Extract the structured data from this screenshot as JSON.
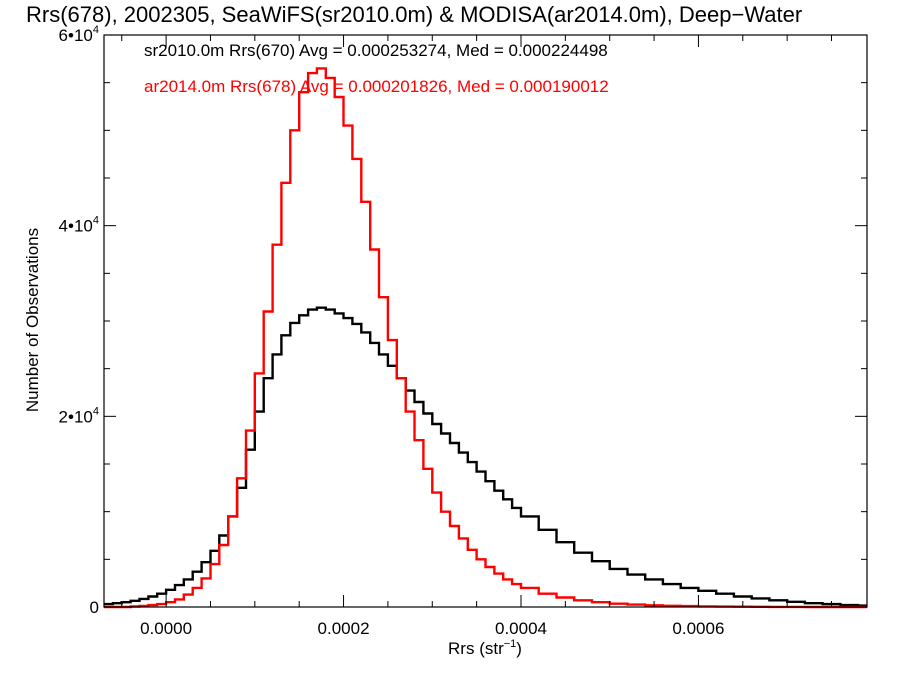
{
  "chart_data": {
    "type": "line",
    "title": "Rrs(678), 2002305, SeaWiFS(sr2010.0m) & MODISA(ar2014.0m), Deep−Water",
    "xlabel": "Rrs (str",
    "xlabel_sup": "−1",
    "xlabel_suffix": ")",
    "ylabel": "Number of Observations",
    "xlim": [
      -7e-05,
      0.00079
    ],
    "ylim": [
      0,
      60000
    ],
    "grid": false,
    "x_ticks": [
      {
        "value": 0.0,
        "label": "0.0000"
      },
      {
        "value": 0.0002,
        "label": "0.0002"
      },
      {
        "value": 0.0004,
        "label": "0.0004"
      },
      {
        "value": 0.0006,
        "label": "0.0006"
      }
    ],
    "y_ticks": [
      {
        "value": 0,
        "label": "0",
        "sup": ""
      },
      {
        "value": 20000,
        "label": "2•10",
        "sup": "4"
      },
      {
        "value": 40000,
        "label": "4•10",
        "sup": "4"
      },
      {
        "value": 60000,
        "label": "6•10",
        "sup": "4"
      }
    ],
    "legend": [
      {
        "text": "sr2010.0m Rrs(670) Avg = 0.000253274, Med = 0.000224498",
        "color": "#000000"
      },
      {
        "text": "ar2014.0m Rrs(678) Avg = 0.000201826, Med = 0.000190012",
        "color": "#ff0000"
      }
    ],
    "legend_placement": "top-left",
    "series": [
      {
        "color": "#000000",
        "x": [
          -7e-05,
          -6e-05,
          -5e-05,
          -4e-05,
          -3e-05,
          -2e-05,
          -1e-05,
          0.0,
          1e-05,
          2e-05,
          3e-05,
          4e-05,
          5e-05,
          6e-05,
          7e-05,
          8e-05,
          9e-05,
          0.0001,
          0.00011,
          0.00012,
          0.00013,
          0.00014,
          0.00015,
          0.00016,
          0.00017,
          0.00018,
          0.00019,
          0.0002,
          0.00021,
          0.00022,
          0.00023,
          0.00024,
          0.00025,
          0.00026,
          0.00027,
          0.00028,
          0.00029,
          0.0003,
          0.00031,
          0.00032,
          0.00033,
          0.00034,
          0.00035,
          0.00036,
          0.00037,
          0.00038,
          0.00039,
          0.0004,
          0.00042,
          0.00044,
          0.00046,
          0.00048,
          0.0005,
          0.00052,
          0.00054,
          0.00056,
          0.00058,
          0.0006,
          0.00062,
          0.00064,
          0.00066,
          0.00068,
          0.0007,
          0.00072,
          0.00074,
          0.00076,
          0.00078
        ],
        "y": [
          300,
          400,
          500,
          650,
          850,
          1100,
          1400,
          1800,
          2300,
          2900,
          3700,
          4700,
          5900,
          7500,
          9500,
          12500,
          16500,
          20500,
          24000,
          26500,
          28500,
          29800,
          30600,
          31200,
          31400,
          31200,
          30800,
          30300,
          29700,
          28800,
          27700,
          26500,
          25300,
          24000,
          22700,
          21500,
          20300,
          19200,
          18200,
          17200,
          16200,
          15200,
          14200,
          13200,
          12200,
          11300,
          10400,
          9500,
          8100,
          6800,
          5700,
          4800,
          4000,
          3400,
          2900,
          2400,
          2000,
          1700,
          1400,
          1100,
          900,
          700,
          550,
          400,
          300,
          200,
          150
        ]
      },
      {
        "color": "#ff0000",
        "x": [
          -7e-05,
          -6e-05,
          -5e-05,
          -4e-05,
          -3e-05,
          -2e-05,
          -1e-05,
          0.0,
          1e-05,
          2e-05,
          3e-05,
          4e-05,
          5e-05,
          6e-05,
          7e-05,
          8e-05,
          9e-05,
          0.0001,
          0.00011,
          0.00012,
          0.00013,
          0.00014,
          0.00015,
          0.00016,
          0.00017,
          0.00018,
          0.00019,
          0.0002,
          0.00021,
          0.00022,
          0.00023,
          0.00024,
          0.00025,
          0.00026,
          0.00027,
          0.00028,
          0.00029,
          0.0003,
          0.00031,
          0.00032,
          0.00033,
          0.00034,
          0.00035,
          0.00036,
          0.00037,
          0.00038,
          0.00039,
          0.0004,
          0.00042,
          0.00044,
          0.00046,
          0.00048,
          0.0005,
          0.00052,
          0.00054,
          0.00056,
          0.00058,
          0.0006,
          0.00062,
          0.00064,
          0.00066,
          0.00068,
          0.0007,
          0.00072,
          0.00074,
          0.00076,
          0.00078
        ],
        "y": [
          0,
          0,
          0,
          50,
          100,
          200,
          300,
          500,
          800,
          1300,
          2000,
          3000,
          4500,
          6500,
          9500,
          13500,
          18500,
          24500,
          31000,
          38000,
          44500,
          50000,
          54000,
          56000,
          56500,
          55500,
          53500,
          50500,
          47000,
          42500,
          37500,
          32500,
          28000,
          24000,
          20500,
          17500,
          14500,
          12000,
          10000,
          8500,
          7200,
          6000,
          5000,
          4200,
          3500,
          2900,
          2400,
          2000,
          1400,
          1000,
          700,
          500,
          350,
          250,
          180,
          130,
          90,
          60,
          40,
          30,
          20,
          15,
          10,
          5,
          0,
          0,
          0
        ]
      }
    ]
  }
}
